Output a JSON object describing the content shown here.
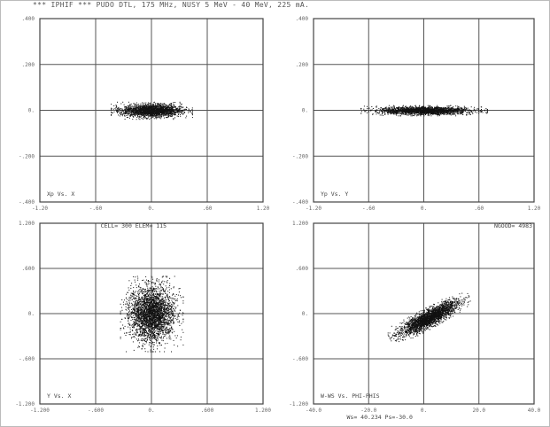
{
  "header": {
    "title": "*** IPHIF *** PUDO DTL, 175 MHz, NUSY 5 MeV - 40 MeV, 225 mA."
  },
  "chart_data": [
    {
      "type": "scatter",
      "panel": "top-left",
      "corner_label": "Xp Vs. X",
      "xlim": [
        -1.2,
        1.2
      ],
      "ylim": [
        -0.4,
        0.4
      ],
      "x_ticks": [
        "-1.20",
        "-.60",
        "0.",
        ".60",
        "1.20"
      ],
      "y_ticks": [
        ".400",
        ".200",
        "0.",
        "-.200",
        "-.400"
      ],
      "cloud": {
        "shape": "ellipse",
        "center": [
          0.0,
          0.0
        ],
        "half_width_x": 0.35,
        "half_width_y": 0.03,
        "tilt_deg": 0,
        "approx_points": 2200
      }
    },
    {
      "type": "scatter",
      "panel": "top-right",
      "corner_label": "Yp Vs. Y",
      "xlim": [
        -1.2,
        1.2
      ],
      "ylim": [
        -0.4,
        0.4
      ],
      "x_ticks": [
        "-1.20",
        "-.60",
        "0.",
        ".60",
        "1.20"
      ],
      "y_ticks": [
        ".400",
        ".200",
        "0.",
        "-.200",
        "-.400"
      ],
      "cloud": {
        "shape": "ellipse",
        "center": [
          0.0,
          0.0
        ],
        "half_width_x": 0.55,
        "half_width_y": 0.018,
        "tilt_deg": 0,
        "approx_points": 2200
      }
    },
    {
      "type": "scatter",
      "panel": "bottom-left",
      "corner_label": "Y Vs. X",
      "top_label": "CELL=  300  ELEM=  115",
      "xlim": [
        -1.2,
        1.2
      ],
      "ylim": [
        -1.2,
        1.2
      ],
      "x_ticks": [
        "-1.200",
        "-.600",
        "0.",
        ".600",
        "1.200"
      ],
      "y_ticks": [
        "1.200",
        ".600",
        "0.",
        "-.600",
        "-1.200"
      ],
      "cloud": {
        "shape": "ellipse",
        "center": [
          0.0,
          0.0
        ],
        "half_width_x": 0.27,
        "half_width_y": 0.4,
        "tilt_deg": 0,
        "approx_points": 3000
      }
    },
    {
      "type": "scatter",
      "panel": "bottom-right",
      "corner_label": "W-WS Vs. PHI-PHIS",
      "top_label": "NGOOD=  4983",
      "bottom_label": "Ws=  40.234  Ps=-30.0",
      "xlim": [
        -40.0,
        40.0
      ],
      "ylim": [
        -1.2,
        1.2
      ],
      "x_ticks": [
        "-40.0",
        "-20.0",
        "0.",
        "20.0",
        "40.0"
      ],
      "y_ticks": [
        "1.200",
        ".600",
        "0.",
        "-.600",
        "-1.200"
      ],
      "cloud": {
        "shape": "ellipse",
        "center": [
          2.0,
          -0.05
        ],
        "half_width_x": 13.0,
        "half_width_y": 0.11,
        "tilt_deg": 28,
        "approx_points": 2600
      }
    }
  ]
}
